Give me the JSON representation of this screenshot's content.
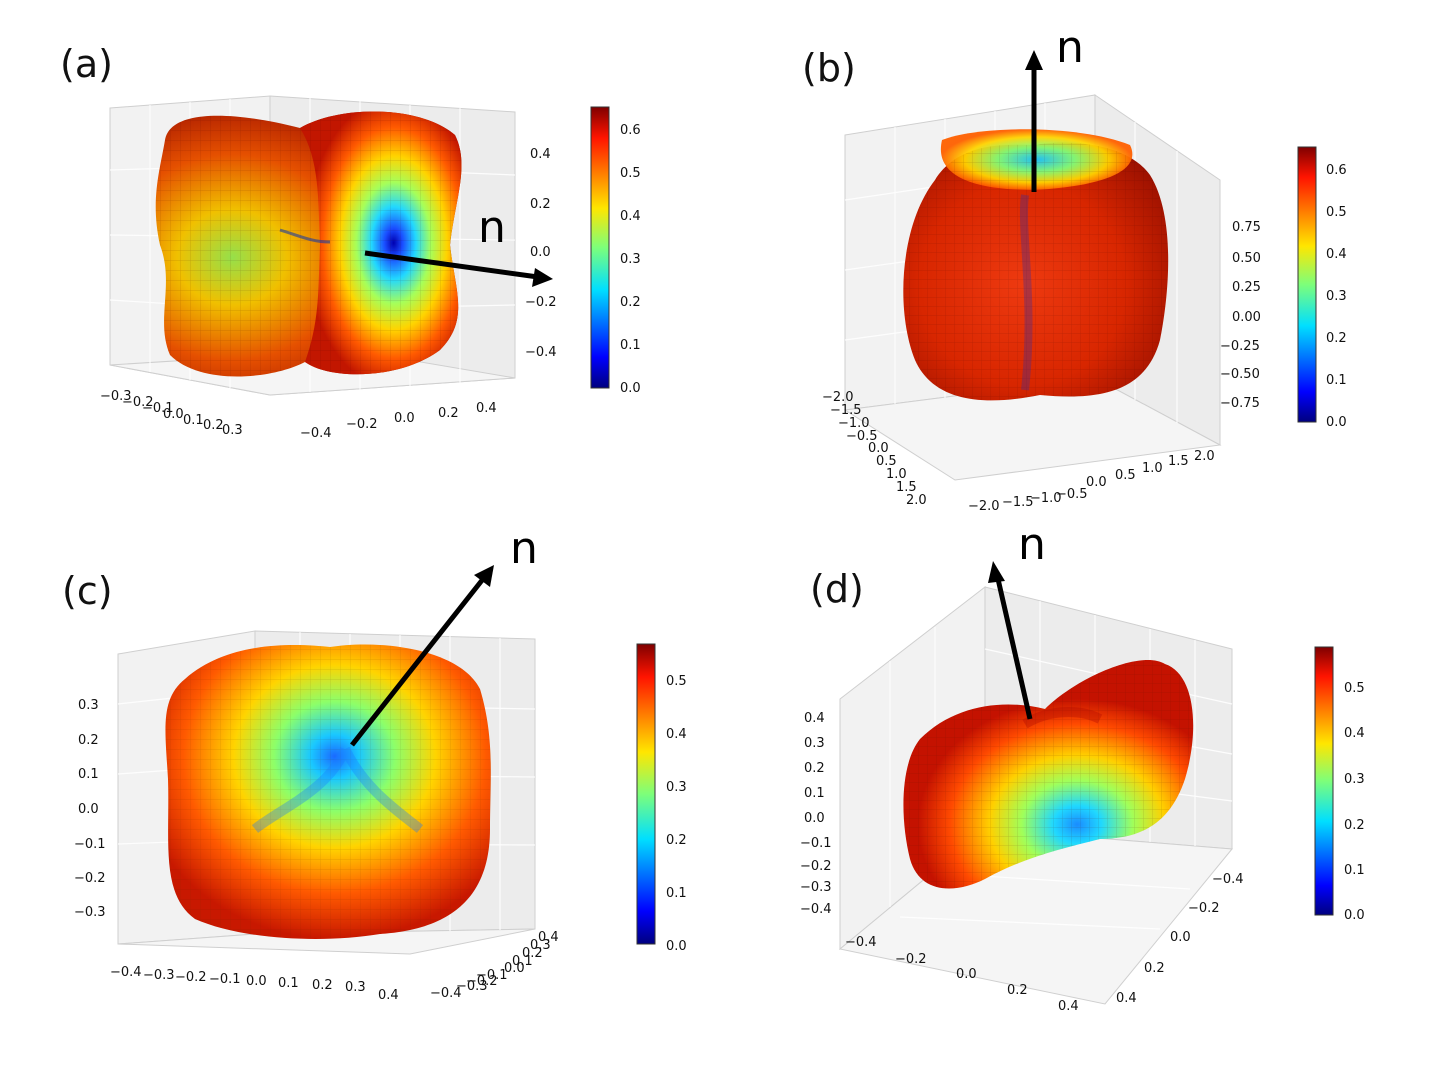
{
  "chart_data": [
    {
      "type": "3d-surface",
      "panel_label": "(a)",
      "arrow_label": "n",
      "x_ticks": [
        "-0.3",
        "-0.2",
        "-0.1",
        "0.0",
        "0.1",
        "0.2",
        "0.3"
      ],
      "y_ticks": [
        "-0.4",
        "-0.2",
        "0.0",
        "0.2",
        "0.4"
      ],
      "z_ticks": [
        "0.4",
        "0.2",
        "0.0",
        "-0.2",
        "-0.4"
      ],
      "colorbar": {
        "colormap": "jet",
        "min": 0.0,
        "max": 0.65,
        "ticks": [
          "0.6",
          "0.5",
          "0.4",
          "0.3",
          "0.2",
          "0.1",
          "0.0"
        ]
      },
      "grid": true
    },
    {
      "type": "3d-surface",
      "panel_label": "(b)",
      "arrow_label": "n",
      "x_ticks": [
        "-2.0",
        "-1.5",
        "-1.0",
        "-0.5",
        "0.0",
        "0.5",
        "1.0",
        "1.5",
        "2.0"
      ],
      "y_ticks": [
        "-2.0",
        "-1.5",
        "-1.0",
        "-0.5",
        "0.0",
        "0.5",
        "1.0",
        "1.5",
        "2.0"
      ],
      "z_ticks": [
        "0.75",
        "0.50",
        "0.25",
        "0.00",
        "-0.25",
        "-0.50",
        "-0.75"
      ],
      "colorbar": {
        "colormap": "jet",
        "min": 0.0,
        "max": 0.65,
        "ticks": [
          "0.6",
          "0.5",
          "0.4",
          "0.3",
          "0.2",
          "0.1",
          "0.0"
        ]
      },
      "grid": true
    },
    {
      "type": "3d-surface",
      "panel_label": "(c)",
      "arrow_label": "n",
      "x_ticks": [
        "-0.4",
        "-0.3",
        "-0.2",
        "-0.1",
        "0.0",
        "0.1",
        "0.2",
        "0.3",
        "0.4"
      ],
      "y_ticks": [
        "0.4",
        "0.3",
        "0.2",
        "0.1",
        "0.0",
        "-0.1",
        "-0.2",
        "-0.3",
        "-0.4"
      ],
      "z_ticks": [
        "0.3",
        "0.2",
        "0.1",
        "0.0",
        "-0.1",
        "-0.2",
        "-0.3"
      ],
      "colorbar": {
        "colormap": "jet",
        "min": 0.0,
        "max": 0.56,
        "ticks": [
          "0.5",
          "0.4",
          "0.3",
          "0.2",
          "0.1",
          "0.0"
        ]
      },
      "grid": true
    },
    {
      "type": "3d-surface",
      "panel_label": "(d)",
      "arrow_label": "n",
      "x_ticks": [
        "-0.4",
        "-0.2",
        "0.0",
        "0.2",
        "0.4"
      ],
      "y_ticks": [
        "-0.4",
        "-0.2",
        "0.0",
        "0.2",
        "0.4"
      ],
      "z_ticks": [
        "0.4",
        "0.3",
        "0.2",
        "0.1",
        "0.0",
        "-0.1",
        "-0.2",
        "-0.3",
        "-0.4"
      ],
      "colorbar": {
        "colormap": "jet",
        "min": 0.0,
        "max": 0.58,
        "ticks": [
          "0.5",
          "0.4",
          "0.3",
          "0.2",
          "0.1",
          "0.0"
        ]
      },
      "grid": true
    }
  ]
}
